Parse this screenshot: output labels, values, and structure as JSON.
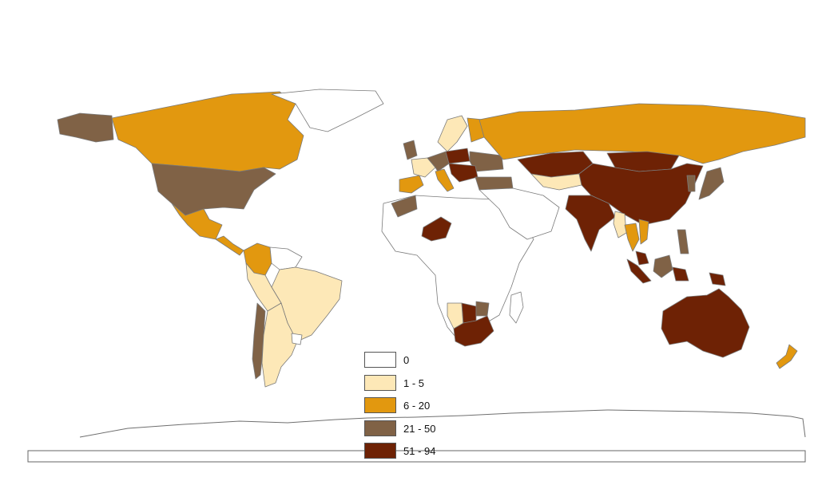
{
  "colors": {
    "c0": "#ffffff",
    "c1": "#fde8b7",
    "c2": "#e2980f",
    "c3": "#806246",
    "c4": "#6e2205",
    "border": "#7a7a7a"
  },
  "legend": {
    "items": [
      {
        "label": "0",
        "color": "#ffffff"
      },
      {
        "label": "1 - 5",
        "color": "#fde8b7"
      },
      {
        "label": "6 - 20",
        "color": "#e2980f"
      },
      {
        "label": "21 - 50",
        "color": "#806246"
      },
      {
        "label": "51 - 94",
        "color": "#6e2205"
      }
    ]
  },
  "regions": [
    {
      "name": "Canada",
      "class": 2
    },
    {
      "name": "Alaska",
      "class": 3
    },
    {
      "name": "United States",
      "class": 3
    },
    {
      "name": "Mexico",
      "class": 2
    },
    {
      "name": "Central America",
      "class": 2
    },
    {
      "name": "Greenland",
      "class": 0
    },
    {
      "name": "Colombia",
      "class": 2
    },
    {
      "name": "Venezuela",
      "class": 0
    },
    {
      "name": "Brazil",
      "class": 1
    },
    {
      "name": "Peru",
      "class": 1
    },
    {
      "name": "Chile",
      "class": 3
    },
    {
      "name": "Argentina",
      "class": 1
    },
    {
      "name": "Uruguay",
      "class": 0
    },
    {
      "name": "Africa",
      "class": 0
    },
    {
      "name": "Morocco",
      "class": 3
    },
    {
      "name": "Niger",
      "class": 4
    },
    {
      "name": "Namibia",
      "class": 1
    },
    {
      "name": "Botswana",
      "class": 4
    },
    {
      "name": "Zimbabwe",
      "class": 3
    },
    {
      "name": "South Africa",
      "class": 4
    },
    {
      "name": "Madagascar",
      "class": 0
    },
    {
      "name": "Iberia",
      "class": 2
    },
    {
      "name": "France",
      "class": 1
    },
    {
      "name": "United Kingdom",
      "class": 3
    },
    {
      "name": "Scandinavia",
      "class": 1
    },
    {
      "name": "Finland",
      "class": 2
    },
    {
      "name": "Central Europe",
      "class": 3
    },
    {
      "name": "Poland",
      "class": 4
    },
    {
      "name": "Ukraine",
      "class": 3
    },
    {
      "name": "Balkans",
      "class": 4
    },
    {
      "name": "Italy",
      "class": 2
    },
    {
      "name": "Turkey",
      "class": 3
    },
    {
      "name": "Middle East",
      "class": 0
    },
    {
      "name": "Russia",
      "class": 2
    },
    {
      "name": "Kazakhstan",
      "class": 4
    },
    {
      "name": "Central Asia",
      "class": 1
    },
    {
      "name": "Mongolia",
      "class": 4
    },
    {
      "name": "China",
      "class": 4
    },
    {
      "name": "India",
      "class": 4
    },
    {
      "name": "Myanmar",
      "class": 1
    },
    {
      "name": "Thailand",
      "class": 2
    },
    {
      "name": "Vietnam",
      "class": 2
    },
    {
      "name": "Japan",
      "class": 3
    },
    {
      "name": "Korea",
      "class": 3
    },
    {
      "name": "Philippines",
      "class": 3
    },
    {
      "name": "Malaysia",
      "class": 4
    },
    {
      "name": "Borneo",
      "class": 3
    },
    {
      "name": "Sumatra",
      "class": 4
    },
    {
      "name": "Indonesia East",
      "class": 4
    },
    {
      "name": "Papua New Guinea",
      "class": 4
    },
    {
      "name": "Australia",
      "class": 4
    },
    {
      "name": "New Zealand",
      "class": 2
    }
  ]
}
